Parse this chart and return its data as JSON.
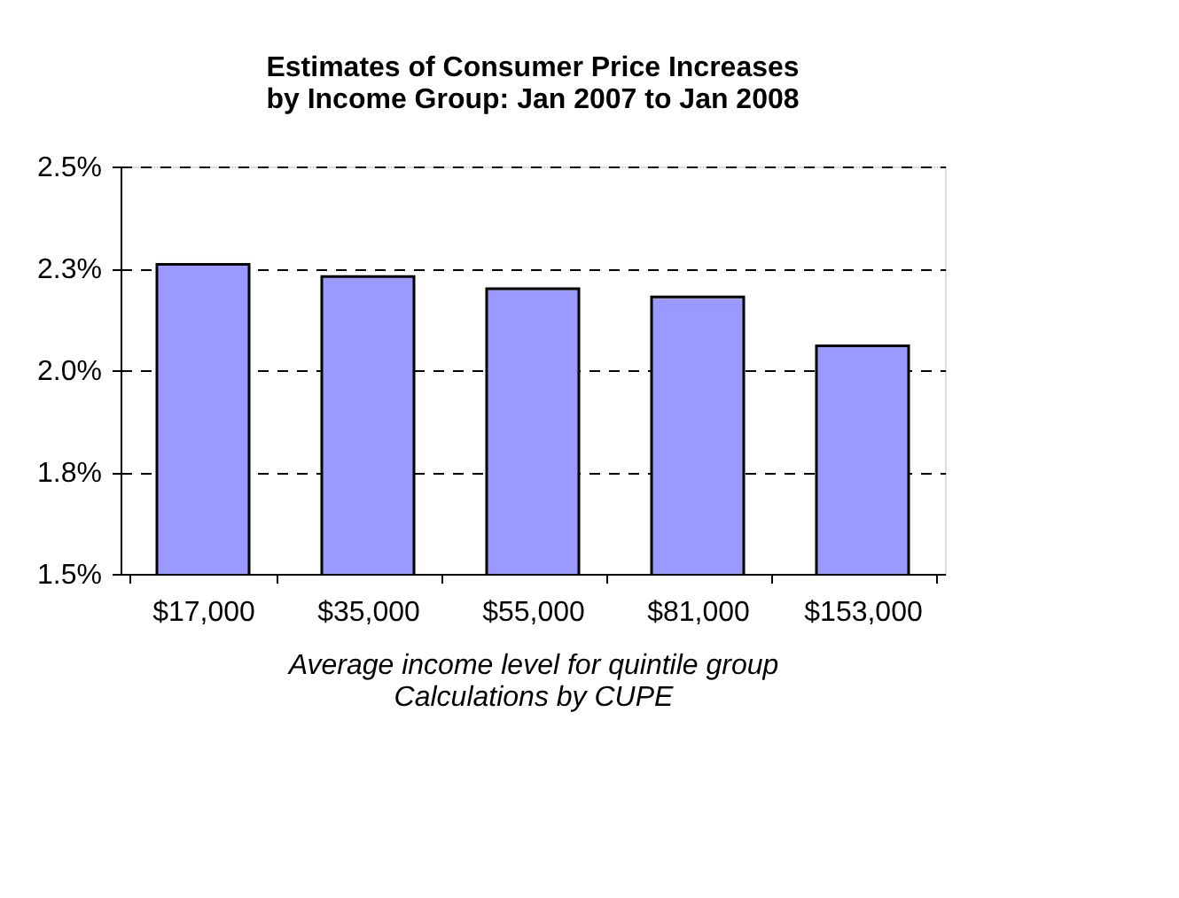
{
  "chart_data": {
    "type": "bar",
    "title": "Estimates of Consumer Price Increases\nby Income Group: Jan 2007 to Jan 2008",
    "xlabel": "Average income level for quintile group\nCalculations by CUPE",
    "categories": [
      "$17,000",
      "$35,000",
      "$55,000",
      "$81,000",
      "$153,000"
    ],
    "values": [
      2.26,
      2.23,
      2.2,
      2.18,
      2.06
    ],
    "color": "#9999ff",
    "ylim": [
      1.5,
      2.5
    ],
    "yticks": [
      {
        "value": 1.5,
        "label": "1.5%"
      },
      {
        "value": 1.75,
        "label": "1.8%"
      },
      {
        "value": 2.0,
        "label": "2.0%"
      },
      {
        "value": 2.25,
        "label": "2.3%"
      },
      {
        "value": 2.5,
        "label": "2.5%"
      }
    ],
    "grid": "y"
  }
}
